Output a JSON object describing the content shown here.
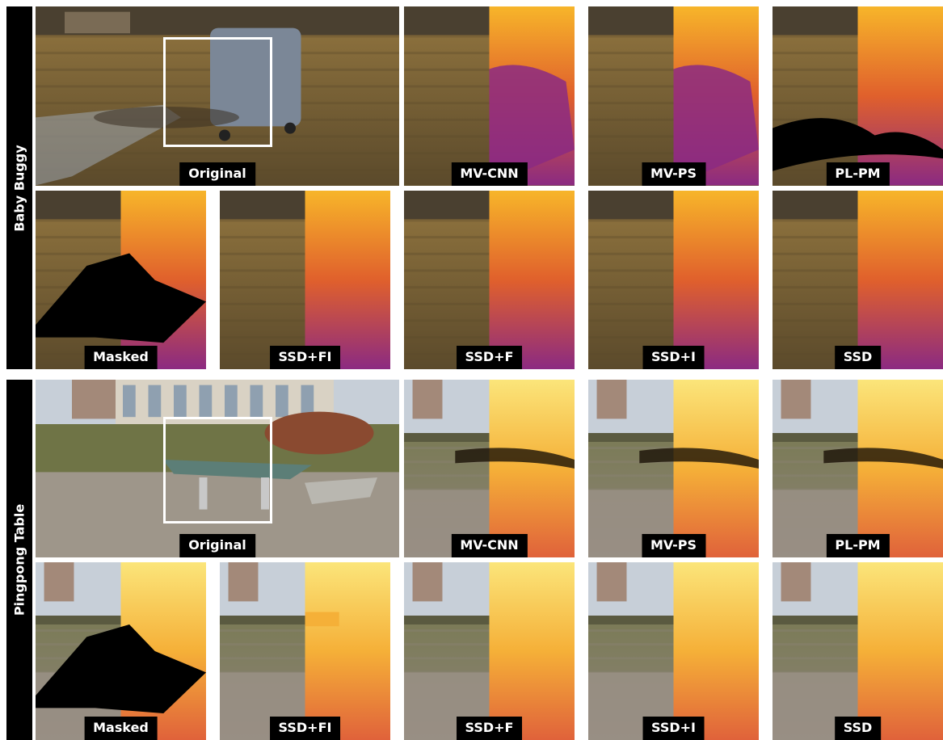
{
  "figure": {
    "sections": [
      {
        "scene": "Baby Buggy",
        "palette": {
          "sky": "#4a4030",
          "ground": "#8a6f3c",
          "ground_dark": "#5b4a2b",
          "depth_top": "#f7b52a",
          "depth_mid": "#e0602c",
          "depth_bottom": "#8b2a82",
          "object": "#7b8797"
        },
        "rows": [
          [
            "Original",
            "MV-CNN",
            "MV-PS",
            "PL-PM"
          ],
          [
            "Masked",
            "SSD+FI",
            "SSD+F",
            "SSD+I",
            "SSD"
          ]
        ]
      },
      {
        "scene": "Pingpong Table",
        "palette": {
          "sky": "#c7cfd8",
          "ground": "#7a7a55",
          "ground_dark": "#8c8478",
          "depth_top": "#fbe57a",
          "depth_mid": "#f5b038",
          "depth_bottom": "#e0623a",
          "object": "#5c7e77"
        },
        "rows": [
          [
            "Original",
            "MV-CNN",
            "MV-PS",
            "PL-PM"
          ],
          [
            "Masked",
            "SSD+FI",
            "SSD+F",
            "SSD+I",
            "SSD"
          ]
        ]
      }
    ]
  }
}
